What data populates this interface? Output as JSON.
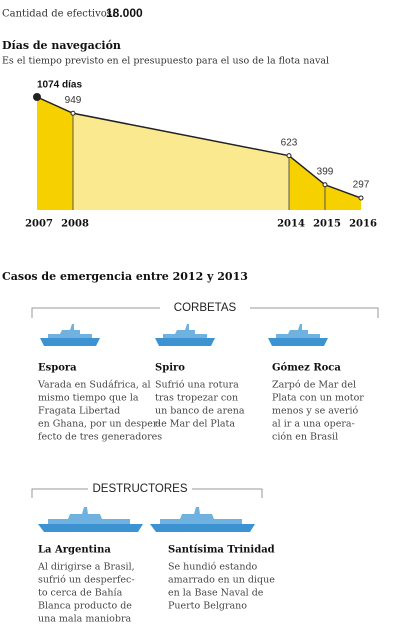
{
  "header": {
    "label": "Cantidad de efectivos:",
    "value": "18.000"
  },
  "chart_data": {
    "type": "area",
    "title": "Días de navegación",
    "subtitle": "Es el tiempo previsto en el presupuesto para el uso de la flota naval",
    "x": [
      2007,
      2008,
      2014,
      2015,
      2016
    ],
    "values": [
      1074,
      949,
      623,
      399,
      297
    ],
    "value_labels": [
      "1074 días",
      "949",
      "623",
      "399",
      "297"
    ],
    "xlim": [
      2007,
      2016
    ],
    "ylim": [
      205,
      1074
    ],
    "segment_colors": [
      "#f7d000",
      "#fbe98f",
      "#f7d000",
      "#f7d000"
    ],
    "line_color": "#222"
  },
  "emergencies": {
    "title": "Casos de emergencia entre 2012 y 2013",
    "groups": [
      {
        "name": "CORBETAS",
        "ships": [
          {
            "name": "Espora",
            "lines": [
              "Varada en Sudáfrica, al",
              "mismo tiempo que la",
              "Fragata Libertad",
              "en Ghana, por un desper-",
              "fecto de tres generadores"
            ]
          },
          {
            "name": "Spiro",
            "lines": [
              "Sufrió una rotura",
              "tras tropezar con",
              "un banco de arena",
              "de Mar del Plata"
            ]
          },
          {
            "name": "Gómez Roca",
            "lines": [
              "Zarpó de Mar del",
              "Plata con un motor",
              "menos y se averió",
              "al ir a una opera-",
              "ción en Brasil"
            ]
          }
        ]
      },
      {
        "name": "DESTRUCTORES",
        "ships": [
          {
            "name": "La Argentina",
            "lines": [
              "Al dirigirse a Brasil,",
              "sufrió un desperfec-",
              "to cerca de Bahía",
              "Blanca producto de",
              "una mala maniobra"
            ]
          },
          {
            "name": "Santísima Trinidad",
            "lines": [
              "Se hundió estando",
              "amarrado en un dique",
              "en la Base Naval de",
              "Puerto Belgrano"
            ]
          }
        ]
      }
    ]
  }
}
